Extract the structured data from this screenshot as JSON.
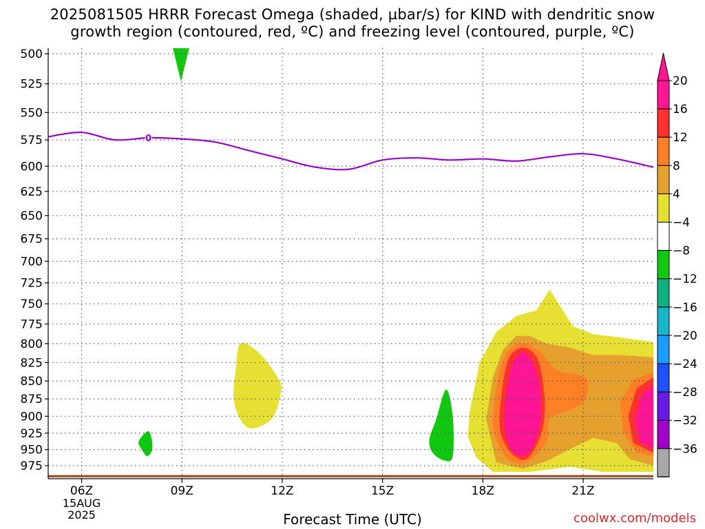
{
  "title_line1": "2025081505 HRRR Forecast Omega (shaded, µbar/s) for KIND with dendritic snow",
  "title_line2": "growth region (contoured, red, ºC) and freezing level (contoured, purple, ºC)",
  "credit": "coolwx.com/models",
  "chart_data": {
    "type": "heatmap",
    "xlabel": "Forecast Time (UTC)",
    "ylabel": "",
    "x_range_hours_utc": [
      5,
      23.1
    ],
    "y_range_hPa": [
      500,
      1000
    ],
    "y_ticks": [
      "500",
      "525",
      "550",
      "575",
      "600",
      "625",
      "650",
      "675",
      "700",
      "725",
      "750",
      "775",
      "800",
      "825",
      "850",
      "875",
      "900",
      "925",
      "950",
      "975"
    ],
    "x_ticks": [
      {
        "hour": 6,
        "label": "06Z"
      },
      {
        "hour": 9,
        "label": "09Z"
      },
      {
        "hour": 12,
        "label": "12Z"
      },
      {
        "hour": 15,
        "label": "15Z"
      },
      {
        "hour": 18,
        "label": "18Z"
      },
      {
        "hour": 21,
        "label": "21Z"
      }
    ],
    "x_date_label": [
      "15AUG",
      "2025"
    ],
    "grid": true,
    "freezing_level": {
      "label": "0",
      "color": "#9900cc",
      "points": [
        [
          5,
          572
        ],
        [
          6,
          568
        ],
        [
          7,
          575
        ],
        [
          8,
          573
        ],
        [
          9,
          574
        ],
        [
          10,
          577
        ],
        [
          11,
          585
        ],
        [
          12,
          593
        ],
        [
          13,
          601
        ],
        [
          14,
          603
        ],
        [
          15,
          594
        ],
        [
          16,
          592
        ],
        [
          17,
          594
        ],
        [
          18,
          593
        ],
        [
          19,
          595
        ],
        [
          20,
          591
        ],
        [
          21,
          588
        ],
        [
          22,
          593
        ],
        [
          23.1,
          601
        ]
      ]
    },
    "ground": {
      "color": "#a0522d",
      "pressure_top": 990
    },
    "colorbar": {
      "ticks": [
        "20",
        "16",
        "12",
        "8",
        "4",
        "−4",
        "−8",
        "−12",
        "−16",
        "−20",
        "−24",
        "−28",
        "−32",
        "−36"
      ],
      "colors": [
        "#ff1493",
        "#ff3030",
        "#ff7f24",
        "#e6a02e",
        "#e6e032",
        "#ffffff",
        "#10c810",
        "#10b080",
        "#18b4c8",
        "#1a9cff",
        "#1e50ff",
        "#6a1ae6",
        "#a000c8",
        "#a8a8a8"
      ],
      "top_arrow_color": "#ff1493",
      "bottom_arrow_color": "#000000"
    },
    "regions": [
      {
        "value": -5,
        "color": "#10c810",
        "points": [
          [
            8.65,
            487
          ],
          [
            8.97,
            523
          ],
          [
            9.3,
            487
          ]
        ]
      },
      {
        "value": 5,
        "color": "#e6e032",
        "points": [
          [
            10.75,
            800
          ],
          [
            11.3,
            812
          ],
          [
            11.9,
            848
          ],
          [
            11.95,
            868
          ],
          [
            11.7,
            903
          ],
          [
            11.1,
            918
          ],
          [
            10.75,
            905
          ],
          [
            10.55,
            875
          ],
          [
            10.6,
            838
          ]
        ]
      },
      {
        "value": -5,
        "color": "#10c810",
        "points": [
          [
            7.8,
            930
          ],
          [
            8.0,
            922
          ],
          [
            8.1,
            935
          ],
          [
            8.1,
            952
          ],
          [
            7.95,
            960
          ],
          [
            7.8,
            950
          ],
          [
            7.7,
            940
          ]
        ]
      },
      {
        "value": -5,
        "color": "#10c810",
        "points": [
          [
            16.9,
            862
          ],
          [
            17.1,
            900
          ],
          [
            17.1,
            960
          ],
          [
            16.85,
            967
          ],
          [
            16.5,
            955
          ],
          [
            16.4,
            935
          ],
          [
            16.6,
            905
          ]
        ]
      },
      {
        "value": 5,
        "color": "#e6e032",
        "points": [
          [
            17.6,
            895
          ],
          [
            17.9,
            825
          ],
          [
            18.4,
            785
          ],
          [
            19.0,
            765
          ],
          [
            19.6,
            758
          ],
          [
            20.0,
            733
          ],
          [
            20.3,
            752
          ],
          [
            20.7,
            778
          ],
          [
            21.3,
            788
          ],
          [
            22.1,
            792
          ],
          [
            23.1,
            798
          ],
          [
            23.1,
            985
          ],
          [
            21.6,
            985
          ],
          [
            20.6,
            977
          ],
          [
            19.4,
            985
          ],
          [
            18.3,
            985
          ],
          [
            17.8,
            962
          ],
          [
            17.55,
            930
          ]
        ]
      },
      {
        "value": 9,
        "color": "#e6a02e",
        "points": [
          [
            18.1,
            905
          ],
          [
            18.3,
            845
          ],
          [
            18.6,
            808
          ],
          [
            19.0,
            790
          ],
          [
            19.4,
            790
          ],
          [
            19.9,
            800
          ],
          [
            20.6,
            805
          ],
          [
            21.3,
            815
          ],
          [
            22.1,
            815
          ],
          [
            23.1,
            818
          ],
          [
            23.1,
            975
          ],
          [
            22.4,
            965
          ],
          [
            22.0,
            940
          ],
          [
            21.3,
            932
          ],
          [
            20.5,
            952
          ],
          [
            19.9,
            968
          ],
          [
            19.2,
            980
          ],
          [
            18.4,
            970
          ]
        ]
      },
      {
        "value": 13,
        "color": "#ff7f24",
        "points": [
          [
            18.3,
            905
          ],
          [
            18.5,
            835
          ],
          [
            18.85,
            805
          ],
          [
            19.3,
            800
          ],
          [
            19.75,
            812
          ],
          [
            20.2,
            835
          ],
          [
            20.9,
            842
          ],
          [
            21.15,
            852
          ],
          [
            21.0,
            880
          ],
          [
            20.4,
            895
          ],
          [
            20.0,
            903
          ],
          [
            19.9,
            938
          ],
          [
            19.3,
            970
          ],
          [
            18.75,
            965
          ],
          [
            18.4,
            935
          ]
        ]
      },
      {
        "value": 13,
        "color": "#ff7f24",
        "points": [
          [
            23.1,
            838
          ],
          [
            22.5,
            848
          ],
          [
            22.1,
            880
          ],
          [
            22.2,
            925
          ],
          [
            22.6,
            955
          ],
          [
            23.1,
            960
          ]
        ]
      },
      {
        "value": 17,
        "color": "#ff3030",
        "points": [
          [
            18.5,
            900
          ],
          [
            18.7,
            830
          ],
          [
            19.0,
            808
          ],
          [
            19.4,
            808
          ],
          [
            19.7,
            828
          ],
          [
            19.85,
            880
          ],
          [
            19.75,
            925
          ],
          [
            19.35,
            963
          ],
          [
            18.95,
            960
          ],
          [
            18.6,
            935
          ]
        ]
      },
      {
        "value": 17,
        "color": "#ff3030",
        "points": [
          [
            23.1,
            845
          ],
          [
            22.6,
            860
          ],
          [
            22.35,
            900
          ],
          [
            22.5,
            940
          ],
          [
            23.1,
            955
          ]
        ]
      },
      {
        "value": 21,
        "color": "#ff1493",
        "points": [
          [
            18.65,
            895
          ],
          [
            18.8,
            840
          ],
          [
            19.05,
            815
          ],
          [
            19.35,
            815
          ],
          [
            19.65,
            845
          ],
          [
            19.75,
            895
          ],
          [
            19.55,
            940
          ],
          [
            19.2,
            960
          ],
          [
            18.85,
            950
          ],
          [
            18.68,
            925
          ]
        ]
      },
      {
        "value": 21,
        "color": "#ff1493",
        "points": [
          [
            23.1,
            855
          ],
          [
            22.75,
            870
          ],
          [
            22.55,
            905
          ],
          [
            22.7,
            940
          ],
          [
            23.1,
            948
          ]
        ]
      }
    ]
  }
}
